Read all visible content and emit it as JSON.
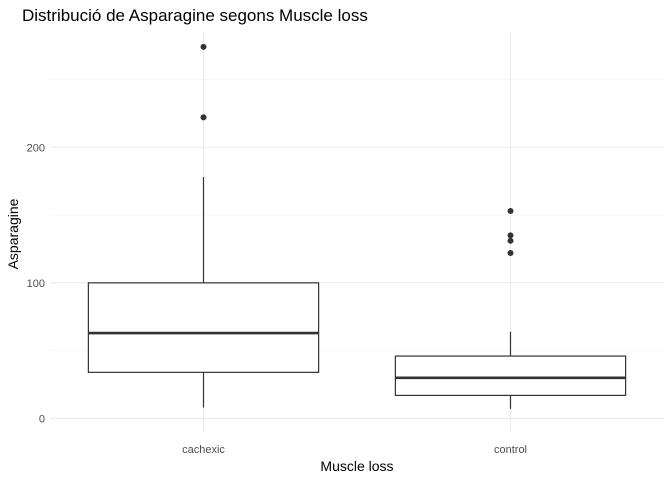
{
  "chart_data": {
    "type": "box",
    "title": "Distribució de Asparagine segons Muscle loss",
    "xlabel": "Muscle loss",
    "ylabel": "Asparagine",
    "ylim": [
      -10,
      285
    ],
    "y_ticks": [
      0,
      100,
      200
    ],
    "grid": true,
    "groups": [
      {
        "category": "cachexic",
        "whisker_low": 8,
        "q1": 34,
        "median": 63,
        "q3": 100,
        "whisker_high": 178,
        "outliers": [
          222,
          274
        ]
      },
      {
        "category": "control",
        "whisker_low": 7,
        "q1": 17,
        "median": 30,
        "q3": 46,
        "whisker_high": 64,
        "outliers": [
          122,
          131,
          135,
          153
        ]
      }
    ]
  }
}
